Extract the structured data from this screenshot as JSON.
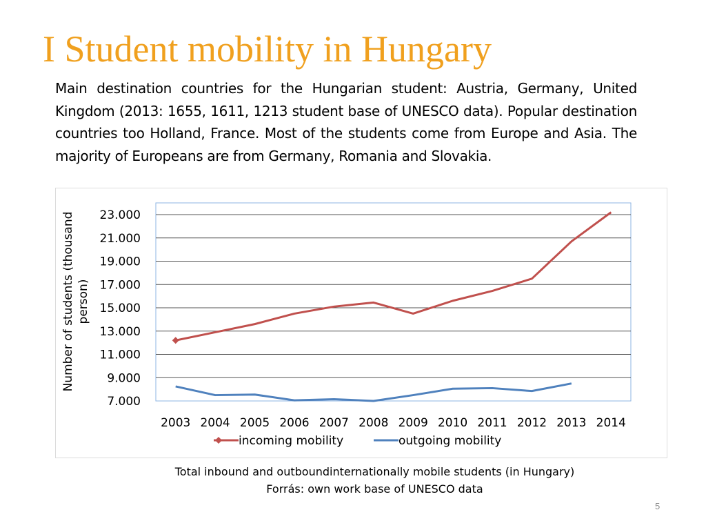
{
  "slide": {
    "title": "I Student mobility in Hungary",
    "intro": "Main destination countries for the Hungarian student: Austria, Germany, United Kingdom (2013: 1655, 1611, 1213 student base of UNESCO data). Popular destination countries too Holland, France. Most of the students come from Europe and Asia. The majority of Europeans are from Germany, Romania and Slovakia.",
    "caption_line1": "Total inbound and outboundinternationally mobile students (in Hungary)",
    "caption_line2": "Forrás: own  work base of UNESCO data",
    "page_number": "5"
  },
  "chart_data": {
    "type": "line",
    "ylabel": "Number of students (thousand person)",
    "ylim": [
      7000,
      23000
    ],
    "yticks": [
      7000,
      9000,
      11000,
      13000,
      15000,
      17000,
      19000,
      21000,
      23000
    ],
    "ytick_labels": [
      "7.000",
      "9.000",
      "11.000",
      "13.000",
      "15.000",
      "17.000",
      "19.000",
      "21.000",
      "23.000"
    ],
    "categories": [
      "2003",
      "2004",
      "2005",
      "2006",
      "2007",
      "2008",
      "2009",
      "2010",
      "2011",
      "2012",
      "2013",
      "2014"
    ],
    "grid": true,
    "legend": "bottom",
    "series": [
      {
        "name": "incoming mobility",
        "color": "#c0504d",
        "marker": "diamond",
        "values": [
          12200,
          12900,
          13600,
          14500,
          15100,
          15450,
          14500,
          15600,
          16450,
          17500,
          20700,
          23200
        ]
      },
      {
        "name": "outgoing mobility",
        "color": "#4f81bd",
        "marker": "none",
        "values": [
          8250,
          7500,
          7550,
          7050,
          7150,
          7000,
          7500,
          8050,
          8100,
          7850,
          8500,
          null
        ]
      }
    ]
  }
}
